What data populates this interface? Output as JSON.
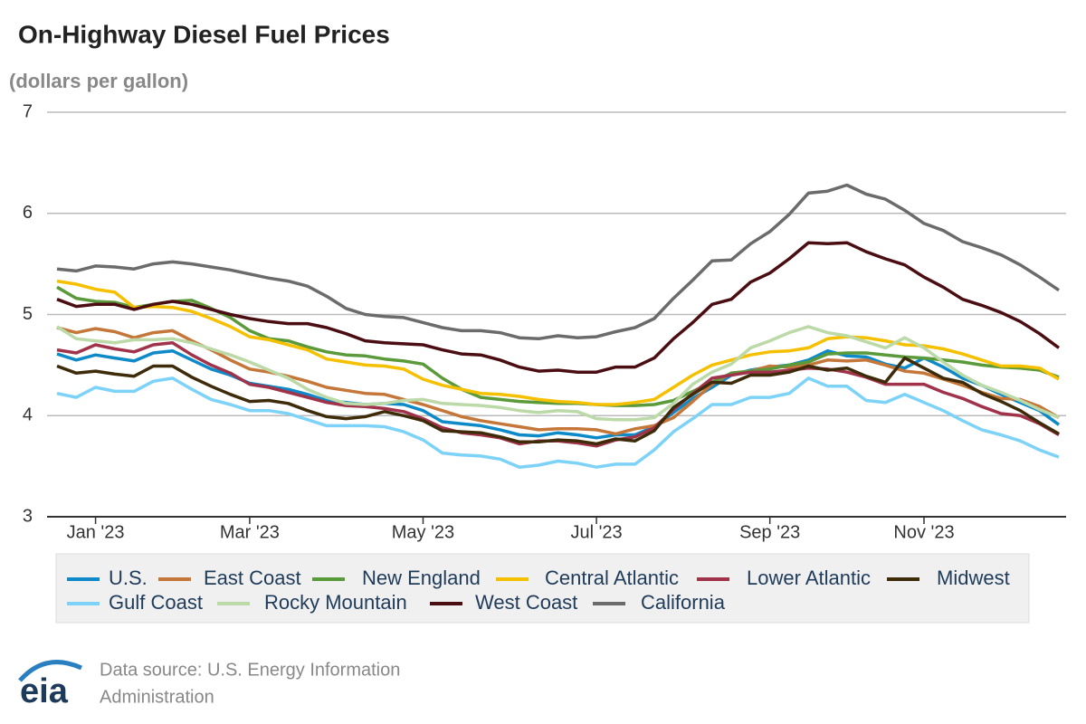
{
  "chart_data": {
    "type": "line",
    "title": "On-Highway Diesel Fuel Prices",
    "subtitle": "(dollars per gallon)",
    "categories": [
      null,
      null,
      "Jan '23",
      null,
      null,
      null,
      null,
      null,
      null,
      null,
      "Mar '23",
      null,
      null,
      null,
      null,
      null,
      null,
      null,
      null,
      "May '23",
      null,
      null,
      null,
      null,
      null,
      null,
      null,
      null,
      "Jul '23",
      null,
      null,
      null,
      null,
      null,
      null,
      null,
      null,
      "Sep '23",
      null,
      null,
      null,
      null,
      null,
      null,
      null,
      "Nov '23",
      null,
      null,
      null,
      null,
      null,
      null,
      null
    ],
    "ylim": [
      3,
      7
    ],
    "yticks": [
      3,
      4,
      5,
      6,
      7
    ],
    "grid": true,
    "series": [
      {
        "name": "U.S.",
        "color": "#0e8ac8",
        "values": [
          4.61,
          4.55,
          4.6,
          4.57,
          4.54,
          4.62,
          4.64,
          4.55,
          4.46,
          4.4,
          4.32,
          4.29,
          4.26,
          4.21,
          4.15,
          4.13,
          4.11,
          4.12,
          4.11,
          4.05,
          3.94,
          3.92,
          3.9,
          3.86,
          3.81,
          3.8,
          3.83,
          3.81,
          3.78,
          3.81,
          3.81,
          3.89,
          4.03,
          4.17,
          4.28,
          4.4,
          4.45,
          4.48,
          4.5,
          4.55,
          4.64,
          4.59,
          4.58,
          4.51,
          4.47,
          4.57,
          4.48,
          4.37,
          4.3,
          4.21,
          4.13,
          4.05,
          3.91
        ]
      },
      {
        "name": "East Coast",
        "color": "#c5773a",
        "values": [
          4.87,
          4.82,
          4.86,
          4.83,
          4.77,
          4.82,
          4.84,
          4.74,
          4.65,
          4.55,
          4.46,
          4.43,
          4.39,
          4.34,
          4.28,
          4.25,
          4.22,
          4.21,
          4.16,
          4.11,
          4.05,
          3.99,
          3.95,
          3.92,
          3.89,
          3.86,
          3.87,
          3.87,
          3.86,
          3.82,
          3.87,
          3.9,
          3.98,
          4.14,
          4.31,
          4.42,
          4.44,
          4.49,
          4.48,
          4.5,
          4.55,
          4.54,
          4.55,
          4.5,
          4.44,
          4.42,
          4.36,
          4.3,
          4.23,
          4.17,
          4.16,
          4.09,
          3.98
        ]
      },
      {
        "name": "New England",
        "color": "#5a9a3a",
        "values": [
          5.27,
          5.16,
          5.13,
          5.12,
          5.07,
          5.1,
          5.13,
          5.14,
          5.06,
          4.97,
          4.84,
          4.76,
          4.74,
          4.68,
          4.63,
          4.6,
          4.59,
          4.56,
          4.54,
          4.51,
          4.37,
          4.26,
          4.18,
          4.16,
          4.14,
          4.13,
          4.12,
          4.12,
          4.11,
          4.1,
          4.1,
          4.11,
          4.15,
          4.24,
          4.33,
          4.42,
          4.44,
          4.46,
          4.5,
          4.53,
          4.61,
          4.62,
          4.62,
          4.6,
          4.58,
          4.57,
          4.55,
          4.53,
          4.5,
          4.48,
          4.47,
          4.45,
          4.38
        ]
      },
      {
        "name": "Central Atlantic",
        "color": "#f5c000",
        "values": [
          5.33,
          5.3,
          5.25,
          5.22,
          5.07,
          5.08,
          5.07,
          5.03,
          4.96,
          4.88,
          4.78,
          4.75,
          4.7,
          4.65,
          4.56,
          4.53,
          4.5,
          4.49,
          4.46,
          4.36,
          4.3,
          4.26,
          4.22,
          4.21,
          4.19,
          4.16,
          4.14,
          4.13,
          4.11,
          4.11,
          4.13,
          4.16,
          4.28,
          4.4,
          4.5,
          4.55,
          4.6,
          4.63,
          4.64,
          4.67,
          4.76,
          4.78,
          4.77,
          4.74,
          4.7,
          4.69,
          4.66,
          4.61,
          4.55,
          4.49,
          4.49,
          4.47,
          4.36
        ]
      },
      {
        "name": "Lower Atlantic",
        "color": "#a0334a",
        "values": [
          4.65,
          4.62,
          4.7,
          4.66,
          4.63,
          4.7,
          4.72,
          4.6,
          4.5,
          4.42,
          4.31,
          4.28,
          4.23,
          4.18,
          4.13,
          4.1,
          4.09,
          4.07,
          4.04,
          3.97,
          3.88,
          3.83,
          3.81,
          3.78,
          3.72,
          3.75,
          3.75,
          3.73,
          3.7,
          3.76,
          3.79,
          3.88,
          4.06,
          4.22,
          4.37,
          4.4,
          4.43,
          4.43,
          4.45,
          4.47,
          4.46,
          4.43,
          4.38,
          4.31,
          4.31,
          4.31,
          4.23,
          4.17,
          4.09,
          4.02,
          4.0,
          3.92,
          3.81
        ]
      },
      {
        "name": "Midwest",
        "color": "#3d2b0a",
        "values": [
          4.49,
          4.42,
          4.44,
          4.41,
          4.39,
          4.49,
          4.49,
          4.38,
          4.29,
          4.21,
          4.14,
          4.15,
          4.12,
          4.05,
          3.99,
          3.97,
          3.99,
          4.04,
          4.0,
          3.95,
          3.85,
          3.84,
          3.83,
          3.79,
          3.74,
          3.74,
          3.76,
          3.75,
          3.72,
          3.77,
          3.75,
          3.85,
          4.08,
          4.21,
          4.33,
          4.32,
          4.4,
          4.4,
          4.43,
          4.49,
          4.45,
          4.47,
          4.39,
          4.33,
          4.57,
          4.47,
          4.37,
          4.33,
          4.22,
          4.14,
          4.05,
          3.93,
          3.82
        ]
      },
      {
        "name": "Gulf Coast",
        "color": "#7dd3f7",
        "values": [
          4.22,
          4.18,
          4.28,
          4.24,
          4.24,
          4.34,
          4.37,
          4.26,
          4.16,
          4.11,
          4.05,
          4.05,
          4.02,
          3.96,
          3.9,
          3.9,
          3.9,
          3.89,
          3.84,
          3.76,
          3.63,
          3.61,
          3.6,
          3.57,
          3.49,
          3.51,
          3.55,
          3.53,
          3.49,
          3.52,
          3.52,
          3.66,
          3.84,
          3.97,
          4.11,
          4.11,
          4.18,
          4.18,
          4.22,
          4.37,
          4.29,
          4.29,
          4.15,
          4.13,
          4.21,
          4.13,
          4.05,
          3.95,
          3.86,
          3.81,
          3.75,
          3.66,
          3.59
        ]
      },
      {
        "name": "Rocky Mountain",
        "color": "#bcd9a8",
        "values": [
          4.88,
          4.76,
          4.74,
          4.72,
          4.75,
          4.75,
          4.76,
          4.72,
          4.66,
          4.6,
          4.53,
          4.45,
          4.37,
          4.26,
          4.18,
          4.12,
          4.11,
          4.12,
          4.15,
          4.16,
          4.12,
          4.11,
          4.1,
          4.08,
          4.05,
          4.03,
          4.05,
          4.04,
          3.97,
          3.96,
          3.96,
          3.98,
          4.12,
          4.31,
          4.43,
          4.51,
          4.67,
          4.74,
          4.82,
          4.88,
          4.82,
          4.79,
          4.73,
          4.67,
          4.77,
          4.67,
          4.53,
          4.4,
          4.3,
          4.23,
          4.15,
          4.06,
          3.98
        ]
      },
      {
        "name": "West Coast",
        "color": "#4a0d12",
        "values": [
          5.15,
          5.08,
          5.1,
          5.1,
          5.05,
          5.1,
          5.13,
          5.1,
          5.05,
          5.0,
          4.96,
          4.93,
          4.91,
          4.91,
          4.87,
          4.81,
          4.74,
          4.72,
          4.71,
          4.7,
          4.65,
          4.61,
          4.6,
          4.55,
          4.48,
          4.44,
          4.45,
          4.43,
          4.43,
          4.48,
          4.48,
          4.57,
          4.76,
          4.92,
          5.1,
          5.15,
          5.32,
          5.41,
          5.55,
          5.71,
          5.7,
          5.71,
          5.62,
          5.55,
          5.49,
          5.37,
          5.27,
          5.15,
          5.09,
          5.02,
          4.93,
          4.81,
          4.67
        ]
      },
      {
        "name": "California",
        "color": "#6b6b6b",
        "values": [
          5.45,
          5.43,
          5.48,
          5.47,
          5.45,
          5.5,
          5.52,
          5.5,
          5.47,
          5.44,
          5.4,
          5.36,
          5.33,
          5.28,
          5.18,
          5.06,
          5.0,
          4.98,
          4.97,
          4.92,
          4.87,
          4.84,
          4.84,
          4.82,
          4.77,
          4.76,
          4.79,
          4.77,
          4.78,
          4.83,
          4.87,
          4.96,
          5.16,
          5.34,
          5.53,
          5.54,
          5.7,
          5.82,
          5.99,
          6.2,
          6.22,
          6.28,
          6.19,
          6.14,
          6.03,
          5.9,
          5.83,
          5.72,
          5.66,
          5.59,
          5.49,
          5.37,
          5.24
        ]
      }
    ]
  },
  "footer": {
    "logo": "eia",
    "source": [
      "Data source: U.S. Energy Information",
      "Administration"
    ]
  }
}
